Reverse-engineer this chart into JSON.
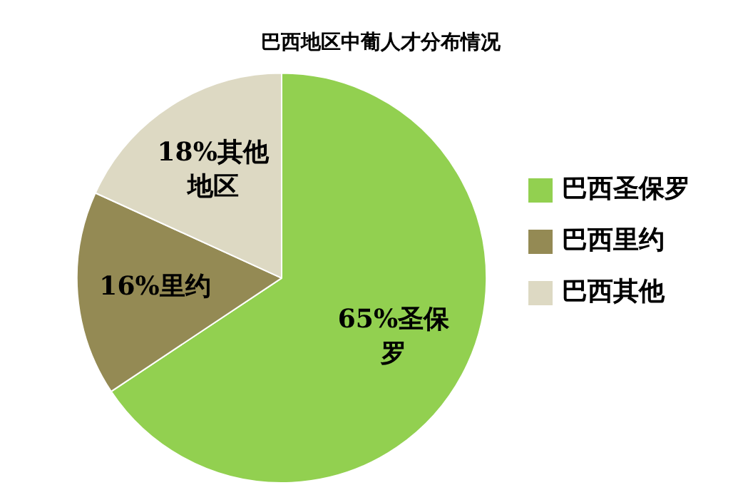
{
  "chart_data": {
    "type": "pie",
    "title": "巴西地区中葡人才分布情况",
    "categories": [
      "巴西圣保罗",
      "巴西里约",
      "巴西其他"
    ],
    "values": [
      65,
      16,
      18
    ],
    "colors": [
      "#92d050",
      "#948a54",
      "#ddd9c3"
    ],
    "value_labels": [
      "65%圣保罗",
      "16%里约",
      "18%其他地区"
    ],
    "legend": "right"
  }
}
